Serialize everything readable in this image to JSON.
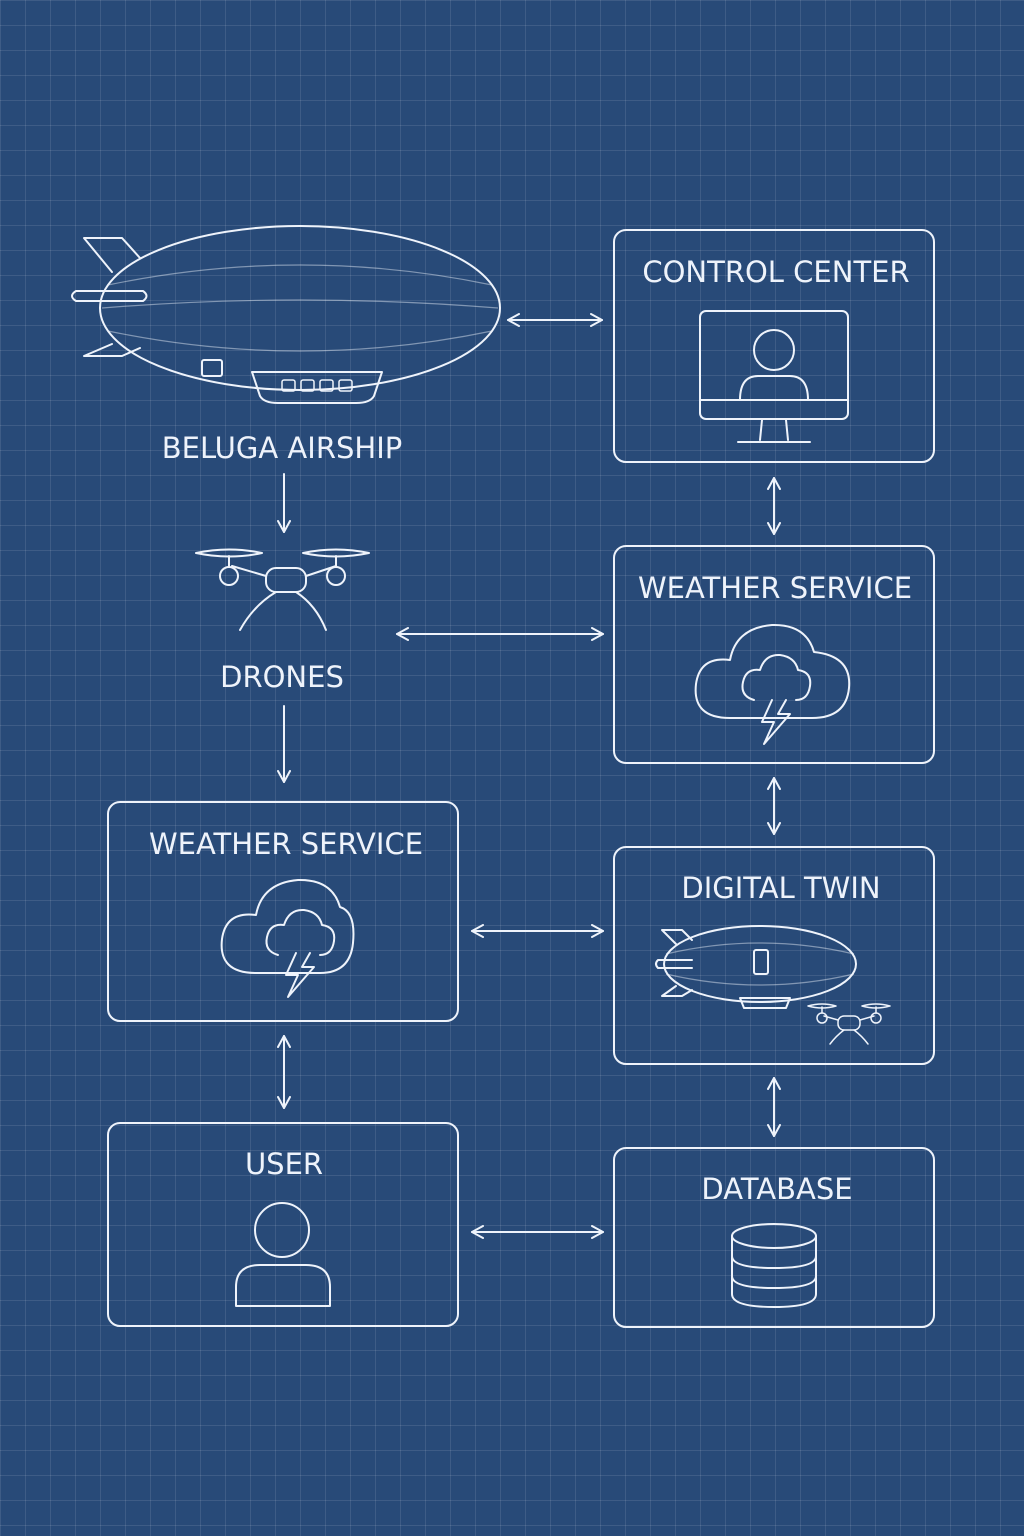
{
  "nodes": {
    "beluga_airship": {
      "label": "BELUGA AIRSHIP",
      "icon": "airship-icon"
    },
    "drones": {
      "label": "DRONES",
      "icon": "drone-icon"
    },
    "control_center": {
      "label": "CONTROL CENTER",
      "icon": "monitor-user-icon"
    },
    "weather_service_right": {
      "label": "WEATHER SERVICE",
      "icon": "storm-cloud-icon"
    },
    "weather_service_left": {
      "label": "WEATHER SERVICE",
      "icon": "storm-cloud-icon"
    },
    "digital_twin": {
      "label": "DIGITAL TWIN",
      "icon": "airship-drone-icon"
    },
    "user": {
      "label": "USER",
      "icon": "user-icon"
    },
    "database": {
      "label": "DATABASE",
      "icon": "database-icon"
    }
  },
  "connections": [
    {
      "from": "BELUGA AIRSHIP",
      "to": "CONTROL CENTER",
      "direction": "both"
    },
    {
      "from": "BELUGA AIRSHIP",
      "to": "DRONES",
      "direction": "forward"
    },
    {
      "from": "CONTROL CENTER",
      "to": "WEATHER SERVICE",
      "direction": "both"
    },
    {
      "from": "DRONES",
      "to": "WEATHER SERVICE",
      "direction": "both"
    },
    {
      "from": "DRONES",
      "to": "WEATHER SERVICE",
      "direction": "forward"
    },
    {
      "from": "WEATHER SERVICE",
      "to": "DIGITAL TWIN",
      "direction": "both"
    },
    {
      "from": "WEATHER SERVICE",
      "to": "DIGITAL TWIN",
      "direction": "both"
    },
    {
      "from": "WEATHER SERVICE",
      "to": "USER",
      "direction": "both"
    },
    {
      "from": "DIGITAL TWIN",
      "to": "DATABASE",
      "direction": "both"
    },
    {
      "from": "USER",
      "to": "DATABASE",
      "direction": "both"
    }
  ],
  "colors": {
    "background": "#284a78",
    "line": "#eef3fb",
    "grid": "#4a6a94"
  }
}
